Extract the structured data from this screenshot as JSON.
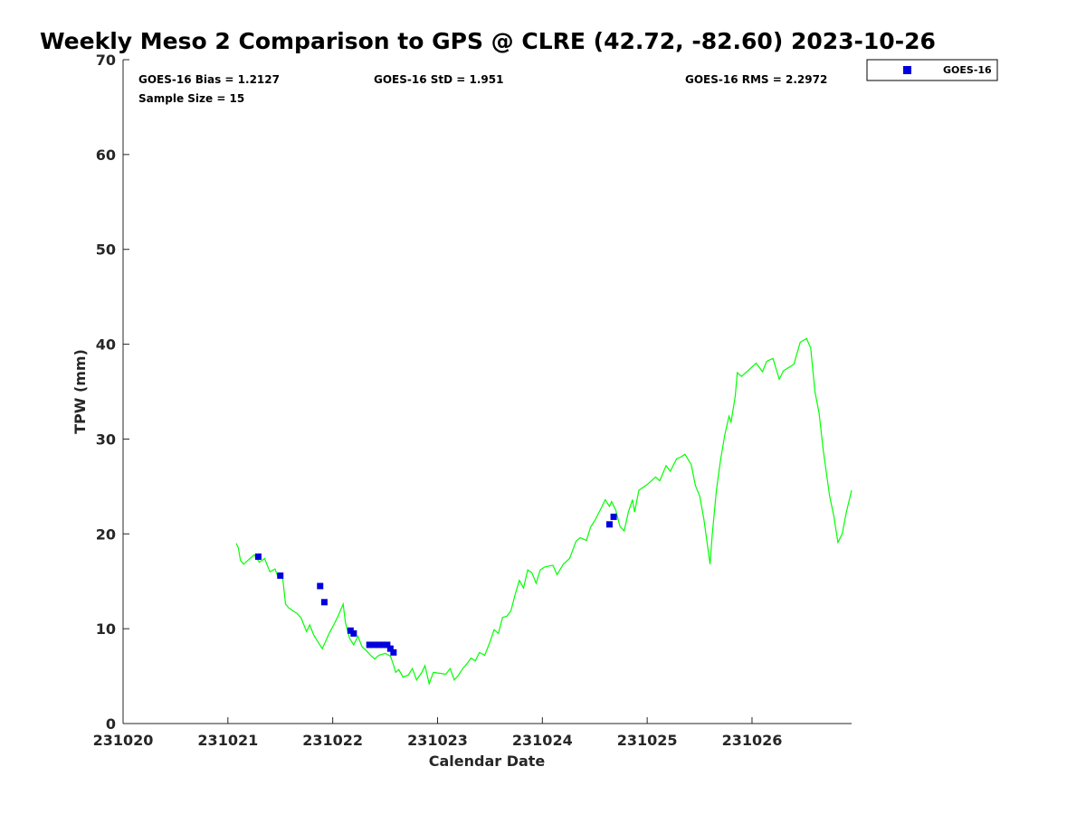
{
  "chart_data": {
    "type": "line",
    "title": "Weekly Meso 2 Comparison to GPS @ CLRE (42.72, -82.60) 2023-10-26",
    "xlabel": "Calendar Date",
    "ylabel": "TPW (mm)",
    "xlim": [
      231020,
      231026.95
    ],
    "ylim": [
      0,
      70
    ],
    "x_ticks": [
      {
        "value": 231020,
        "label": "231020"
      },
      {
        "value": 231021,
        "label": "231021"
      },
      {
        "value": 231022,
        "label": "231022"
      },
      {
        "value": 231023,
        "label": "231023"
      },
      {
        "value": 231024,
        "label": "231024"
      },
      {
        "value": 231025,
        "label": "231025"
      },
      {
        "value": 231026,
        "label": "231026"
      }
    ],
    "y_ticks": [
      {
        "value": 0,
        "label": "0"
      },
      {
        "value": 10,
        "label": "10"
      },
      {
        "value": 20,
        "label": "20"
      },
      {
        "value": 30,
        "label": "30"
      },
      {
        "value": 40,
        "label": "40"
      },
      {
        "value": 50,
        "label": "50"
      },
      {
        "value": 60,
        "label": "60"
      },
      {
        "value": 70,
        "label": "70"
      }
    ],
    "grid": false,
    "legend_position": "outside-top-right",
    "stats": {
      "bias": "GOES-16 Bias = 1.2127",
      "std": "GOES-16 StD = 1.951",
      "rms": "GOES-16 RMS = 2.2972",
      "sample": "Sample Size = 15"
    },
    "series": [
      {
        "kind": "line",
        "color": "#00ff00",
        "points": [
          [
            231021.08,
            19.0
          ],
          [
            231021.1,
            18.5
          ],
          [
            231021.12,
            17.2
          ],
          [
            231021.15,
            16.8
          ],
          [
            231021.2,
            17.3
          ],
          [
            231021.25,
            17.8
          ],
          [
            231021.3,
            17.0
          ],
          [
            231021.35,
            17.4
          ],
          [
            231021.4,
            16.0
          ],
          [
            231021.45,
            16.3
          ],
          [
            231021.48,
            15.4
          ],
          [
            231021.52,
            15.6
          ],
          [
            231021.55,
            12.6
          ],
          [
            231021.58,
            12.2
          ],
          [
            231021.62,
            11.9
          ],
          [
            231021.66,
            11.6
          ],
          [
            231021.7,
            11.1
          ],
          [
            231021.75,
            9.7
          ],
          [
            231021.78,
            10.4
          ],
          [
            231021.82,
            9.3
          ],
          [
            231021.86,
            8.6
          ],
          [
            231021.9,
            7.9
          ],
          [
            231021.93,
            8.6
          ],
          [
            231021.97,
            9.6
          ],
          [
            231022.01,
            10.4
          ],
          [
            231022.05,
            11.3
          ],
          [
            231022.1,
            12.6
          ],
          [
            231022.12,
            10.7
          ],
          [
            231022.16,
            9.0
          ],
          [
            231022.2,
            8.3
          ],
          [
            231022.24,
            9.2
          ],
          [
            231022.28,
            8.1
          ],
          [
            231022.32,
            7.7
          ],
          [
            231022.36,
            7.2
          ],
          [
            231022.4,
            6.8
          ],
          [
            231022.44,
            7.2
          ],
          [
            231022.5,
            7.4
          ],
          [
            231022.55,
            7.1
          ],
          [
            231022.58,
            6.2
          ],
          [
            231022.6,
            5.4
          ],
          [
            231022.63,
            5.7
          ],
          [
            231022.67,
            4.9
          ],
          [
            231022.72,
            5.1
          ],
          [
            231022.76,
            5.8
          ],
          [
            231022.8,
            4.6
          ],
          [
            231022.85,
            5.4
          ],
          [
            231022.88,
            6.1
          ],
          [
            231022.92,
            4.2
          ],
          [
            231022.96,
            5.4
          ],
          [
            231023.02,
            5.3
          ],
          [
            231023.08,
            5.2
          ],
          [
            231023.12,
            5.8
          ],
          [
            231023.16,
            4.6
          ],
          [
            231023.2,
            5.1
          ],
          [
            231023.24,
            5.8
          ],
          [
            231023.28,
            6.3
          ],
          [
            231023.32,
            6.9
          ],
          [
            231023.36,
            6.6
          ],
          [
            231023.4,
            7.5
          ],
          [
            231023.45,
            7.2
          ],
          [
            231023.5,
            8.6
          ],
          [
            231023.54,
            9.9
          ],
          [
            231023.58,
            9.5
          ],
          [
            231023.62,
            11.2
          ],
          [
            231023.66,
            11.3
          ],
          [
            231023.7,
            11.9
          ],
          [
            231023.74,
            13.6
          ],
          [
            231023.78,
            15.1
          ],
          [
            231023.82,
            14.3
          ],
          [
            231023.86,
            16.2
          ],
          [
            231023.9,
            15.9
          ],
          [
            231023.94,
            14.8
          ],
          [
            231023.98,
            16.2
          ],
          [
            231024.02,
            16.5
          ],
          [
            231024.1,
            16.7
          ],
          [
            231024.14,
            15.7
          ],
          [
            231024.2,
            16.8
          ],
          [
            231024.26,
            17.4
          ],
          [
            231024.32,
            19.2
          ],
          [
            231024.36,
            19.6
          ],
          [
            231024.42,
            19.3
          ],
          [
            231024.46,
            20.7
          ],
          [
            231024.5,
            21.4
          ],
          [
            231024.56,
            22.7
          ],
          [
            231024.6,
            23.6
          ],
          [
            231024.64,
            22.9
          ],
          [
            231024.66,
            23.4
          ],
          [
            231024.7,
            22.5
          ],
          [
            231024.74,
            20.8
          ],
          [
            231024.78,
            20.3
          ],
          [
            231024.82,
            22.3
          ],
          [
            231024.86,
            23.6
          ],
          [
            231024.88,
            22.3
          ],
          [
            231024.92,
            24.6
          ],
          [
            231025.0,
            25.2
          ],
          [
            231025.08,
            26.0
          ],
          [
            231025.12,
            25.6
          ],
          [
            231025.18,
            27.2
          ],
          [
            231025.22,
            26.6
          ],
          [
            231025.28,
            27.9
          ],
          [
            231025.32,
            28.1
          ],
          [
            231025.36,
            28.4
          ],
          [
            231025.42,
            27.3
          ],
          [
            231025.46,
            25.1
          ],
          [
            231025.5,
            24.0
          ],
          [
            231025.54,
            21.6
          ],
          [
            231025.6,
            16.8
          ],
          [
            231025.62,
            19.8
          ],
          [
            231025.66,
            24.6
          ],
          [
            231025.7,
            27.8
          ],
          [
            231025.74,
            30.4
          ],
          [
            231025.78,
            32.4
          ],
          [
            231025.8,
            31.8
          ],
          [
            231025.84,
            34.5
          ],
          [
            231025.86,
            37.0
          ],
          [
            231025.9,
            36.6
          ],
          [
            231025.96,
            37.2
          ],
          [
            231026.04,
            38.0
          ],
          [
            231026.1,
            37.1
          ],
          [
            231026.14,
            38.2
          ],
          [
            231026.2,
            38.5
          ],
          [
            231026.26,
            36.3
          ],
          [
            231026.3,
            37.2
          ],
          [
            231026.36,
            37.6
          ],
          [
            231026.4,
            37.9
          ],
          [
            231026.46,
            40.2
          ],
          [
            231026.52,
            40.6
          ],
          [
            231026.56,
            39.6
          ],
          [
            231026.6,
            35.0
          ],
          [
            231026.64,
            32.7
          ],
          [
            231026.68,
            28.8
          ],
          [
            231026.74,
            24.0
          ],
          [
            231026.78,
            21.9
          ],
          [
            231026.82,
            19.1
          ],
          [
            231026.86,
            20.0
          ],
          [
            231026.9,
            22.3
          ],
          [
            231026.95,
            24.6
          ]
        ]
      },
      {
        "kind": "scatter",
        "name": "GOES-16",
        "color": "#0000dd",
        "points": [
          [
            231021.29,
            17.6
          ],
          [
            231021.5,
            15.6
          ],
          [
            231021.88,
            14.5
          ],
          [
            231021.92,
            12.8
          ],
          [
            231022.17,
            9.8
          ],
          [
            231022.2,
            9.5
          ],
          [
            231022.35,
            8.3
          ],
          [
            231022.4,
            8.3
          ],
          [
            231022.44,
            8.3
          ],
          [
            231022.48,
            8.3
          ],
          [
            231022.52,
            8.3
          ],
          [
            231022.55,
            7.9
          ],
          [
            231022.58,
            7.5
          ],
          [
            231024.64,
            21.0
          ],
          [
            231024.68,
            21.8
          ]
        ]
      }
    ]
  }
}
